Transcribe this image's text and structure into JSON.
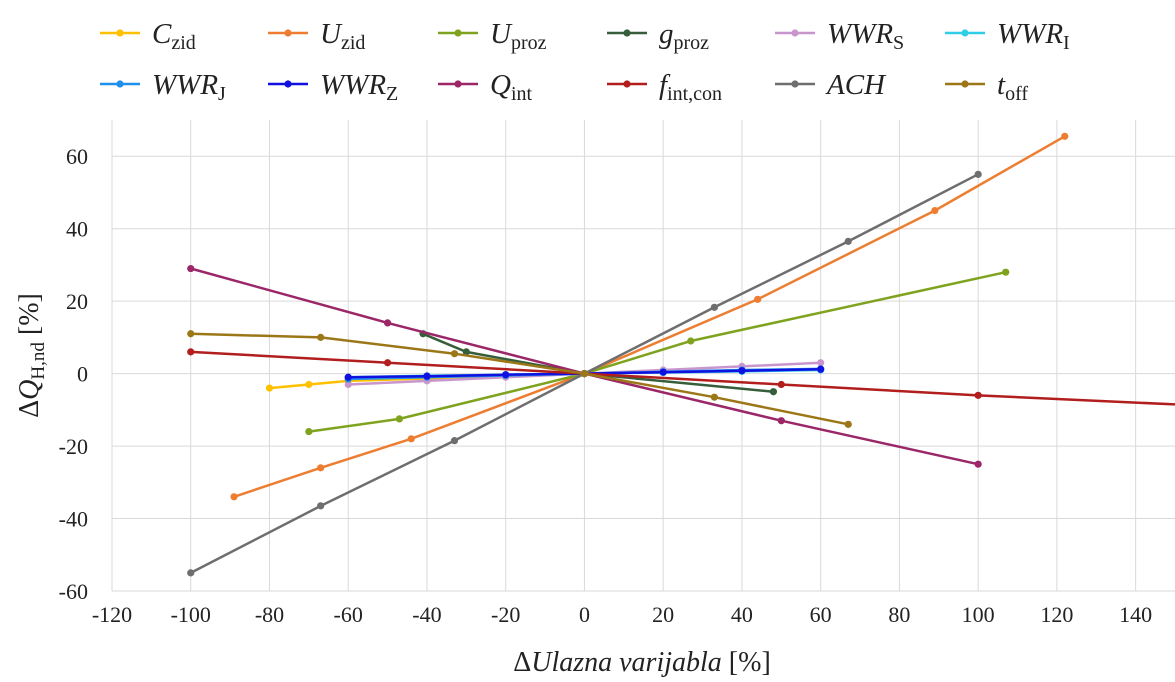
{
  "chart_data": {
    "type": "line",
    "xlabel": "ΔUlazna varijabla [%]",
    "xlabel_parts": {
      "delta": "Δ",
      "name": "Ulazna varijabla",
      "unit": " [%]"
    },
    "ylabel": "ΔQH,nd [%]",
    "ylabel_parts": {
      "delta": "Δ",
      "main": "Q",
      "sub": "H,nd",
      "unit": " [%]"
    },
    "xlim": [
      -120,
      150
    ],
    "ylim": [
      -60,
      70
    ],
    "xticks": [
      -120,
      -100,
      -80,
      -60,
      -40,
      -20,
      0,
      20,
      40,
      60,
      80,
      100,
      120,
      140
    ],
    "yticks": [
      -60,
      -40,
      -20,
      0,
      20,
      40,
      60
    ],
    "grid": true,
    "legend_position": "top",
    "series": [
      {
        "name": "Czid",
        "main": "C",
        "sub": "zid",
        "color": "#FFC000",
        "points": [
          [
            -80,
            -4
          ],
          [
            -70,
            -3
          ],
          [
            -60,
            -2
          ],
          [
            0,
            0
          ]
        ]
      },
      {
        "name": "Uzid",
        "main": "U",
        "sub": "zid",
        "color": "#ED7D31",
        "points": [
          [
            -89,
            -34
          ],
          [
            -67,
            -26
          ],
          [
            -44,
            -18
          ],
          [
            0,
            0
          ],
          [
            44,
            20.5
          ],
          [
            89,
            45
          ],
          [
            122,
            65.5
          ]
        ]
      },
      {
        "name": "Uproz",
        "main": "U",
        "sub": "proz",
        "color": "#7FA31E",
        "points": [
          [
            -70,
            -16
          ],
          [
            -47,
            -12.5
          ],
          [
            0,
            0
          ],
          [
            27,
            9
          ],
          [
            107,
            28
          ]
        ]
      },
      {
        "name": "gproz",
        "main": "g",
        "sub": "proz",
        "color": "#375E3A",
        "points": [
          [
            -41,
            11
          ],
          [
            -30,
            6
          ],
          [
            0,
            0
          ],
          [
            48,
            -5
          ]
        ]
      },
      {
        "name": "WWRS",
        "main": "WWR",
        "sub": "S",
        "color": "#C896CD",
        "points": [
          [
            -60,
            -3
          ],
          [
            -40,
            -2
          ],
          [
            -20,
            -1
          ],
          [
            0,
            0
          ],
          [
            20,
            1
          ],
          [
            40,
            2
          ],
          [
            60,
            3
          ]
        ]
      },
      {
        "name": "WWRI",
        "main": "WWR",
        "sub": "I",
        "color": "#2ECEE6",
        "points": [
          [
            -60,
            -1
          ],
          [
            -40,
            -0.6
          ],
          [
            -20,
            -0.3
          ],
          [
            0,
            0
          ],
          [
            20,
            0.3
          ],
          [
            40,
            0.6
          ],
          [
            60,
            1
          ]
        ]
      },
      {
        "name": "WWRJ",
        "main": "WWR",
        "sub": "J",
        "color": "#1F8FEA",
        "points": [
          [
            -60,
            -1.5
          ],
          [
            -40,
            -1
          ],
          [
            -20,
            -0.5
          ],
          [
            0,
            0
          ],
          [
            20,
            0.5
          ],
          [
            40,
            1
          ],
          [
            60,
            1.3
          ]
        ]
      },
      {
        "name": "WWRZ",
        "main": "WWR",
        "sub": "Z",
        "color": "#1010E0",
        "points": [
          [
            -60,
            -1
          ],
          [
            -40,
            -0.7
          ],
          [
            -20,
            -0.3
          ],
          [
            0,
            0
          ],
          [
            20,
            0.4
          ],
          [
            40,
            0.8
          ],
          [
            60,
            1.2
          ]
        ]
      },
      {
        "name": "Qint",
        "main": "Q",
        "sub": "int",
        "color": "#9B2768",
        "points": [
          [
            -100,
            29
          ],
          [
            -50,
            14
          ],
          [
            0,
            0
          ],
          [
            50,
            -13
          ],
          [
            100,
            -25
          ]
        ]
      },
      {
        "name": "fint,con",
        "main": "f",
        "sub": "int,con",
        "color": "#B21E1E",
        "points": [
          [
            -100,
            6
          ],
          [
            -50,
            3
          ],
          [
            0,
            0
          ],
          [
            50,
            -3
          ],
          [
            100,
            -6
          ],
          [
            150,
            -8.5
          ]
        ]
      },
      {
        "name": "ACH",
        "main": "ACH",
        "sub": "",
        "color": "#6E6E6E",
        "points": [
          [
            -100,
            -55
          ],
          [
            -67,
            -36.5
          ],
          [
            -33,
            -18.5
          ],
          [
            0,
            0
          ],
          [
            33,
            18.3
          ],
          [
            67,
            36.5
          ],
          [
            100,
            55
          ]
        ]
      },
      {
        "name": "toff",
        "main": "t",
        "sub": "off",
        "color": "#9C7718",
        "points": [
          [
            -100,
            11
          ],
          [
            -67,
            10
          ],
          [
            -33,
            5.5
          ],
          [
            0,
            0
          ],
          [
            33,
            -6.5
          ],
          [
            67,
            -14
          ]
        ]
      }
    ]
  }
}
